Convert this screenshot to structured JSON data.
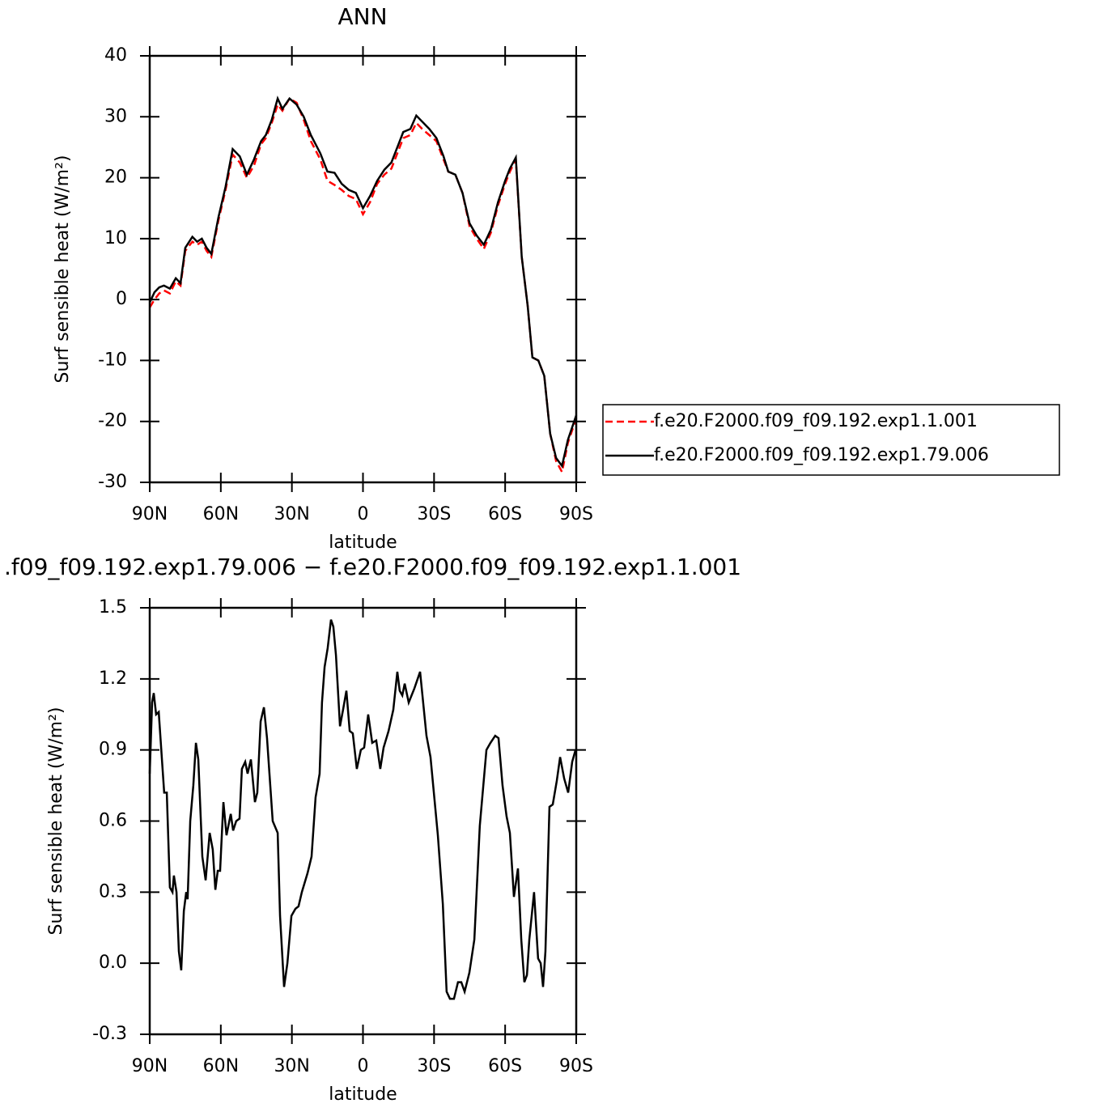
{
  "chart_data": [
    {
      "type": "line",
      "title": "ANN",
      "xlabel": "latitude",
      "ylabel": "Surf sensible heat (W/m²)",
      "x": [
        90,
        88,
        86,
        84,
        81.5,
        79,
        77,
        75,
        72,
        70,
        68,
        66,
        64,
        61,
        58,
        55,
        52,
        49,
        46,
        43,
        41,
        38.5,
        36,
        34,
        31,
        28,
        25,
        22,
        18,
        15,
        12,
        9,
        6,
        3,
        0,
        -3,
        -6,
        -9,
        -12,
        -15,
        -17,
        -20,
        -22.5,
        -25,
        -28,
        -31,
        -34,
        -36,
        -39,
        -42,
        -45,
        -48,
        -51,
        -54,
        -57,
        -60,
        -62,
        -64.5,
        -67,
        -69.5,
        -71.5,
        -74,
        -76.5,
        -79,
        -81.5,
        -84,
        -86.5,
        -90
      ],
      "series": [
        {
          "name": "f.e20.F2000.f09_f09.192.exp1.1.001",
          "color": "#ff0000",
          "dash": "dashed",
          "values": [
            -1.3,
            0,
            1.0,
            1.5,
            1.0,
            3.0,
            2.3,
            8.0,
            9.5,
            9.0,
            9.5,
            8.0,
            7.0,
            13.0,
            18.0,
            23.8,
            22.5,
            20.0,
            22.0,
            25.5,
            26.5,
            29.0,
            32.0,
            31.0,
            33.0,
            32.3,
            29.5,
            26.0,
            23.0,
            19.5,
            18.8,
            18.0,
            17.0,
            16.5,
            14.0,
            16.0,
            19.0,
            20.5,
            21.5,
            24.5,
            26.5,
            27.0,
            29.0,
            28.0,
            27.0,
            26.0,
            23.0,
            21.0,
            20.5,
            17.5,
            12.0,
            10.0,
            8.3,
            11.0,
            15.5,
            19.0,
            21.0,
            23.0,
            7.0,
            -1.0,
            -9.5,
            -10.0,
            -12.5,
            -22.0,
            -26.5,
            -28.3,
            -23.5,
            -19.5
          ]
        },
        {
          "name": "f.e20.F2000.f09_f09.192.exp1.79.006",
          "color": "#000000",
          "dash": "solid",
          "values": [
            -0.5,
            1.2,
            2.0,
            2.3,
            1.8,
            3.5,
            2.7,
            8.5,
            10.3,
            9.5,
            10.0,
            8.5,
            7.5,
            13.5,
            18.5,
            24.7,
            23.5,
            20.5,
            23.0,
            26.0,
            27.0,
            29.5,
            33.0,
            31.3,
            33.0,
            32.0,
            30.0,
            27.0,
            24.0,
            21.0,
            20.8,
            19.0,
            18.0,
            17.5,
            15.0,
            17.0,
            19.5,
            21.3,
            22.5,
            25.5,
            27.5,
            28.0,
            30.2,
            29.2,
            28.0,
            26.5,
            23.5,
            21.0,
            20.5,
            17.5,
            12.5,
            10.5,
            9.0,
            11.5,
            16.0,
            19.5,
            21.5,
            23.3,
            7.0,
            -1.0,
            -9.5,
            -10.0,
            -12.5,
            -22.0,
            -26.0,
            -27.3,
            -23.0,
            -19.0
          ]
        }
      ],
      "xlim": [
        90,
        -90
      ],
      "xticks": [
        {
          "value": 90,
          "label": "90N"
        },
        {
          "value": 60,
          "label": "60N"
        },
        {
          "value": 30,
          "label": "30N"
        },
        0,
        {
          "value": -30,
          "label": "30S"
        },
        {
          "value": -60,
          "label": "60S"
        },
        {
          "value": -90,
          "label": "90S"
        }
      ],
      "ylim": [
        -30,
        40
      ],
      "yticks": [
        -30,
        -20,
        -10,
        0,
        10,
        20,
        30,
        40
      ],
      "legend": "right"
    },
    {
      "type": "line",
      "title": ".f09_f09.192.exp1.79.006 − f.e20.F2000.f09_f09.192.exp1.1.001",
      "xlabel": "latitude",
      "ylabel": "Surf sensible heat (W/m²)",
      "color": "#000000",
      "x": [
        90,
        89,
        88.3,
        87.3,
        86.2,
        83.9,
        82.8,
        81.5,
        80.4,
        79.8,
        78.7,
        77.7,
        76.7,
        75.6,
        74.6,
        74,
        72.9,
        71.6,
        70.5,
        69.5,
        67.8,
        66.4,
        64.7,
        63.4,
        62.3,
        61.3,
        60.3,
        58.9,
        57.6,
        55.8,
        54.8,
        53.5,
        52.1,
        51.1,
        49.7,
        48.7,
        47.3,
        45.6,
        44.6,
        43.2,
        41.8,
        40.5,
        38.1,
        36,
        35,
        33.3,
        31.9,
        30.2,
        28.5,
        27.2,
        25.8,
        23.4,
        21.7,
        20,
        18.3,
        17.3,
        16.2,
        14.9,
        13.5,
        12.5,
        11.4,
        9.7,
        8.4,
        7,
        5.6,
        4.3,
        2.6,
        0.9,
        -0.5,
        -2.2,
        -3.9,
        -5.6,
        -7.3,
        -8.7,
        -10.8,
        -12.8,
        -14.5,
        -15.5,
        -16.6,
        -17.6,
        -19.3,
        -21.7,
        -24.1,
        -26.8,
        -28.5,
        -31.6,
        -33.7,
        -35.3,
        -36.7,
        -38.4,
        -40.1,
        -41.5,
        -42.9,
        -44.9,
        -47,
        -49.3,
        -52.1,
        -53.8,
        -55.8,
        -57.2,
        -58.9,
        -60.6,
        -62,
        -63.7,
        -65.4,
        -66.8,
        -68.1,
        -69.2,
        -70.2,
        -72.2,
        -73.9,
        -75,
        -76,
        -77,
        -78.7,
        -80.1,
        -81.8,
        -83.2,
        -84.9,
        -86.6,
        -88.3,
        -89.7
      ],
      "values": [
        0.8,
        1.1,
        1.14,
        1.05,
        1.06,
        0.72,
        0.72,
        0.32,
        0.3,
        0.37,
        0.3,
        0.05,
        -0.03,
        0.22,
        0.3,
        0.27,
        0.6,
        0.75,
        0.93,
        0.86,
        0.45,
        0.35,
        0.55,
        0.48,
        0.31,
        0.39,
        0.39,
        0.68,
        0.54,
        0.63,
        0.56,
        0.6,
        0.61,
        0.82,
        0.85,
        0.8,
        0.86,
        0.68,
        0.72,
        1.02,
        1.08,
        0.95,
        0.6,
        0.55,
        0.2,
        -0.1,
        0.0,
        0.2,
        0.23,
        0.24,
        0.3,
        0.38,
        0.45,
        0.7,
        0.8,
        1.1,
        1.25,
        1.33,
        1.45,
        1.42,
        1.3,
        1.0,
        1.07,
        1.15,
        0.98,
        0.97,
        0.82,
        0.9,
        0.91,
        1.05,
        0.93,
        0.94,
        0.82,
        0.91,
        0.98,
        1.07,
        1.23,
        1.15,
        1.13,
        1.18,
        1.1,
        1.16,
        1.23,
        0.96,
        0.87,
        0.54,
        0.25,
        -0.12,
        -0.15,
        -0.15,
        -0.08,
        -0.08,
        -0.12,
        -0.04,
        0.1,
        0.58,
        0.9,
        0.93,
        0.96,
        0.95,
        0.75,
        0.62,
        0.55,
        0.28,
        0.4,
        0.1,
        -0.08,
        -0.05,
        0.1,
        0.3,
        0.02,
        0.0,
        -0.1,
        0.05,
        0.66,
        0.67,
        0.77,
        0.87,
        0.78,
        0.72,
        0.85,
        0.9
      ],
      "xlim": [
        90,
        -90
      ],
      "xticks": [
        {
          "value": 90,
          "label": "90N"
        },
        {
          "value": 60,
          "label": "60N"
        },
        {
          "value": 30,
          "label": "30N"
        },
        0,
        {
          "value": -30,
          "label": "30S"
        },
        {
          "value": -60,
          "label": "60S"
        },
        {
          "value": -90,
          "label": "90S"
        }
      ],
      "ylim": [
        -0.3,
        1.5
      ],
      "yticks": [
        -0.3,
        {
          "value": 0,
          "label": "0.0"
        },
        0.3,
        0.6,
        0.9,
        1.2,
        1.5
      ]
    }
  ]
}
